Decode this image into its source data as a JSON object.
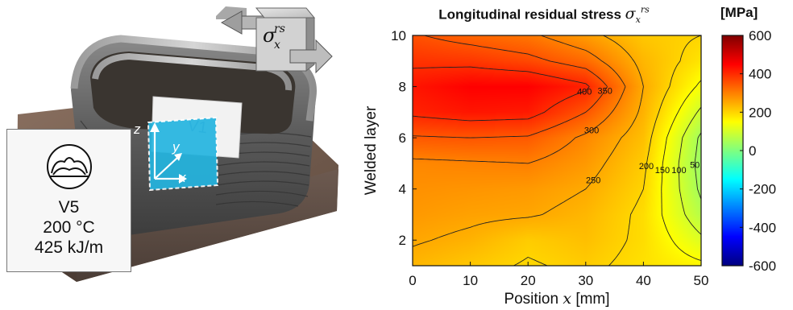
{
  "photo": {
    "specimen_tag": "V1",
    "axes": {
      "z": "z",
      "y": "y",
      "x": "x"
    },
    "info": {
      "variant": "V5",
      "temperature": "200 °C",
      "heat_input": "425 kJ/m"
    },
    "cube_label": {
      "base": "σ",
      "sub": "x",
      "sup": "rs"
    }
  },
  "chart_data": {
    "type": "contour",
    "title": "Longitudinal residual stress",
    "title_symbol": {
      "base": "σ",
      "sub": "x",
      "sup": "rs"
    },
    "colorbar_label": "[MPa]",
    "xlabel": {
      "text": "Position",
      "var": "x",
      "unit": "[mm]"
    },
    "ylabel": "Welded layer",
    "xlim": [
      0,
      50
    ],
    "ylim": [
      1,
      10
    ],
    "x_ticks": [
      0,
      10,
      20,
      30,
      40,
      50
    ],
    "y_ticks": [
      2,
      4,
      6,
      8,
      10
    ],
    "colorbar": {
      "range": [
        -600,
        600
      ],
      "ticks": [
        600,
        400,
        200,
        0,
        -200,
        -400,
        -600
      ],
      "colormap": "jet"
    },
    "contour_levels": [
      0,
      50,
      100,
      150,
      200,
      250,
      300,
      350,
      400
    ],
    "x": [
      0,
      10,
      20,
      30,
      40,
      50
    ],
    "y": [
      1,
      2,
      3,
      4,
      5,
      6,
      7,
      8,
      9,
      10
    ],
    "z": [
      [
        235,
        215,
        195,
        210,
        185,
        160
      ],
      [
        255,
        240,
        210,
        225,
        190,
        110
      ],
      [
        270,
        260,
        255,
        235,
        190,
        65
      ],
      [
        280,
        275,
        270,
        250,
        200,
        40
      ],
      [
        290,
        295,
        300,
        270,
        210,
        30
      ],
      [
        345,
        350,
        345,
        290,
        225,
        40
      ],
      [
        410,
        425,
        420,
        350,
        240,
        90
      ],
      [
        425,
        450,
        450,
        410,
        250,
        140
      ],
      [
        390,
        385,
        365,
        325,
        235,
        180
      ],
      [
        355,
        330,
        310,
        265,
        215,
        200
      ]
    ]
  }
}
